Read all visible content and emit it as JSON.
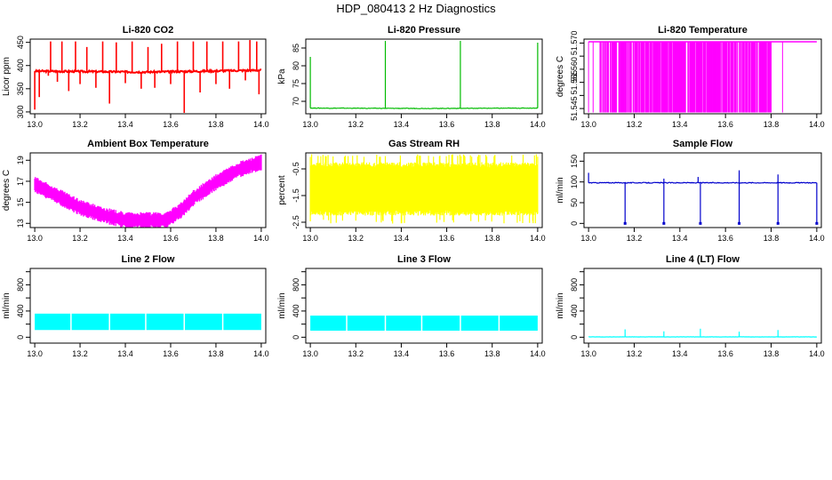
{
  "title": "HDP_080413  2 Hz Diagnostics",
  "x_ticks": [
    "13.0",
    "13.2",
    "13.4",
    "13.6",
    "13.8",
    "14.0"
  ],
  "chart_data": [
    {
      "type": "line",
      "title": "Li-820 CO2",
      "ylabel": "Licor ppm",
      "color": "#ff0000",
      "xlim": [
        12.98,
        14.02
      ],
      "ylim": [
        296,
        457
      ],
      "yticks": [
        300,
        350,
        400,
        450
      ],
      "ytick_labels": [
        "300",
        "350",
        "400",
        "450"
      ],
      "baseline": [
        [
          13.0,
          388
        ],
        [
          13.5,
          386
        ],
        [
          14.0,
          390
        ]
      ],
      "spikes": [
        [
          13.0,
          305
        ],
        [
          13.02,
          332
        ],
        [
          13.06,
          378
        ],
        [
          13.07,
          452
        ],
        [
          13.1,
          365
        ],
        [
          13.12,
          452
        ],
        [
          13.15,
          345
        ],
        [
          13.18,
          452
        ],
        [
          13.2,
          360
        ],
        [
          13.23,
          440
        ],
        [
          13.27,
          352
        ],
        [
          13.3,
          452
        ],
        [
          13.33,
          318
        ],
        [
          13.36,
          450
        ],
        [
          13.4,
          362
        ],
        [
          13.43,
          452
        ],
        [
          13.47,
          350
        ],
        [
          13.5,
          440
        ],
        [
          13.53,
          352
        ],
        [
          13.56,
          447
        ],
        [
          13.6,
          360
        ],
        [
          13.63,
          452
        ],
        [
          13.66,
          298
        ],
        [
          13.7,
          452
        ],
        [
          13.73,
          342
        ],
        [
          13.76,
          452
        ],
        [
          13.8,
          360
        ],
        [
          13.83,
          452
        ],
        [
          13.86,
          350
        ],
        [
          13.9,
          452
        ],
        [
          13.93,
          368
        ],
        [
          13.95,
          455
        ],
        [
          13.98,
          452
        ],
        [
          13.99,
          338
        ]
      ]
    },
    {
      "type": "line",
      "title": "Li-820 Pressure",
      "ylabel": "kPa",
      "color": "#00bb00",
      "xlim": [
        12.98,
        14.02
      ],
      "ylim": [
        66.5,
        87.5
      ],
      "yticks": [
        70,
        75,
        80,
        85
      ],
      "ytick_labels": [
        "70",
        "75",
        "80",
        "85"
      ],
      "baseline": [
        [
          13.0,
          68.1
        ],
        [
          13.5,
          68.0
        ],
        [
          14.0,
          68.1
        ]
      ],
      "spikes": [
        [
          13.0,
          82.5
        ],
        [
          13.33,
          87.0
        ],
        [
          13.66,
          87.0
        ],
        [
          14.0,
          86.5
        ]
      ]
    },
    {
      "type": "bar",
      "title": "Li-820 Temperature",
      "ylabel": "degrees C",
      "color": "#ff00ff",
      "xlim": [
        12.98,
        14.02
      ],
      "ylim": [
        51.543,
        51.5715
      ],
      "yticks": [
        51.545,
        51.55,
        51.555,
        51.56,
        51.565,
        51.57
      ],
      "ytick_labels": [
        "51.545",
        "",
        "51.555",
        "51.560",
        "",
        "51.570"
      ],
      "top_value": 51.5705,
      "bottom_value": 51.5435,
      "dense_band": [
        13.05,
        13.8
      ],
      "tail_end": 14.0
    },
    {
      "type": "area",
      "title": "Ambient Box Temperature",
      "ylabel": "degrees C",
      "color": "#ff00ff",
      "xlim": [
        12.98,
        14.02
      ],
      "ylim": [
        12.6,
        19.7
      ],
      "yticks": [
        13,
        15,
        17,
        19
      ],
      "ytick_labels": [
        "13",
        "15",
        "17",
        "19"
      ],
      "curve": [
        [
          13.0,
          16.7
        ],
        [
          13.1,
          15.6
        ],
        [
          13.2,
          14.5
        ],
        [
          13.3,
          13.8
        ],
        [
          13.4,
          13.3
        ],
        [
          13.5,
          13.3
        ],
        [
          13.58,
          13.3
        ],
        [
          13.65,
          14.3
        ],
        [
          13.7,
          15.4
        ],
        [
          13.8,
          16.9
        ],
        [
          13.9,
          18.1
        ],
        [
          14.0,
          18.8
        ]
      ],
      "band_halfwidth": 0.7
    },
    {
      "type": "area",
      "title": "Gas Stream RH",
      "ylabel": "percent",
      "color": "#ffff00",
      "xlim": [
        12.98,
        14.02
      ],
      "ylim": [
        -2.7,
        0.1
      ],
      "yticks": [
        -2.5,
        -1.5,
        -0.5
      ],
      "ytick_labels": [
        "-2.5",
        "-1.5",
        "-0.5"
      ],
      "band_top": -0.25,
      "band_bottom": -2.25,
      "spike_min": -2.55,
      "spike_max": -0.05
    },
    {
      "type": "line",
      "title": "Sample Flow",
      "ylabel": "ml/min",
      "color": "#0000cc",
      "xlim": [
        12.98,
        14.02
      ],
      "ylim": [
        -10,
        170
      ],
      "yticks": [
        0,
        50,
        100,
        150
      ],
      "ytick_labels": [
        "0",
        "50",
        "100",
        "150"
      ],
      "baseline": [
        [
          13.0,
          98
        ],
        [
          14.0,
          98
        ]
      ],
      "spikes": [
        [
          13.0,
          122
        ],
        [
          13.33,
          108
        ],
        [
          13.48,
          112
        ],
        [
          13.66,
          128
        ],
        [
          13.83,
          118
        ]
      ],
      "dips": [
        [
          13.16,
          0
        ],
        [
          13.33,
          0
        ],
        [
          13.49,
          0
        ],
        [
          13.66,
          0
        ],
        [
          13.83,
          0
        ],
        [
          14.0,
          0
        ]
      ]
    },
    {
      "type": "area",
      "title": "Line 2 Flow",
      "ylabel": "ml/min",
      "color": "#00ffff",
      "xlim": [
        12.98,
        14.02
      ],
      "ylim": [
        -90,
        1050
      ],
      "yticks": [
        0,
        200,
        400,
        600,
        800,
        1000
      ],
      "ytick_labels": [
        "0",
        "",
        "400",
        "",
        "800",
        ""
      ],
      "band_top": 360,
      "band_bottom": 110,
      "gaps": [
        13.16,
        13.33,
        13.49,
        13.66,
        13.83
      ]
    },
    {
      "type": "area",
      "title": "Line 3 Flow",
      "ylabel": "ml/min",
      "color": "#00ffff",
      "xlim": [
        12.98,
        14.02
      ],
      "ylim": [
        -90,
        1050
      ],
      "yticks": [
        0,
        200,
        400,
        600,
        800,
        1000
      ],
      "ytick_labels": [
        "0",
        "",
        "400",
        "",
        "800",
        ""
      ],
      "band_top": 330,
      "band_bottom": 100,
      "gaps": [
        13.16,
        13.33,
        13.49,
        13.66,
        13.83
      ]
    },
    {
      "type": "line",
      "title": "Line 4 (LT) Flow",
      "ylabel": "ml/min",
      "color": "#00ffff",
      "xlim": [
        12.98,
        14.02
      ],
      "ylim": [
        -90,
        1050
      ],
      "yticks": [
        0,
        200,
        400,
        600,
        800,
        1000
      ],
      "ytick_labels": [
        "0",
        "",
        "400",
        "",
        "800",
        ""
      ],
      "baseline": [
        [
          13.0,
          5
        ],
        [
          14.0,
          5
        ]
      ],
      "spikes": [
        [
          13.16,
          120
        ],
        [
          13.33,
          90
        ],
        [
          13.49,
          130
        ],
        [
          13.66,
          85
        ],
        [
          13.83,
          110
        ]
      ]
    }
  ]
}
